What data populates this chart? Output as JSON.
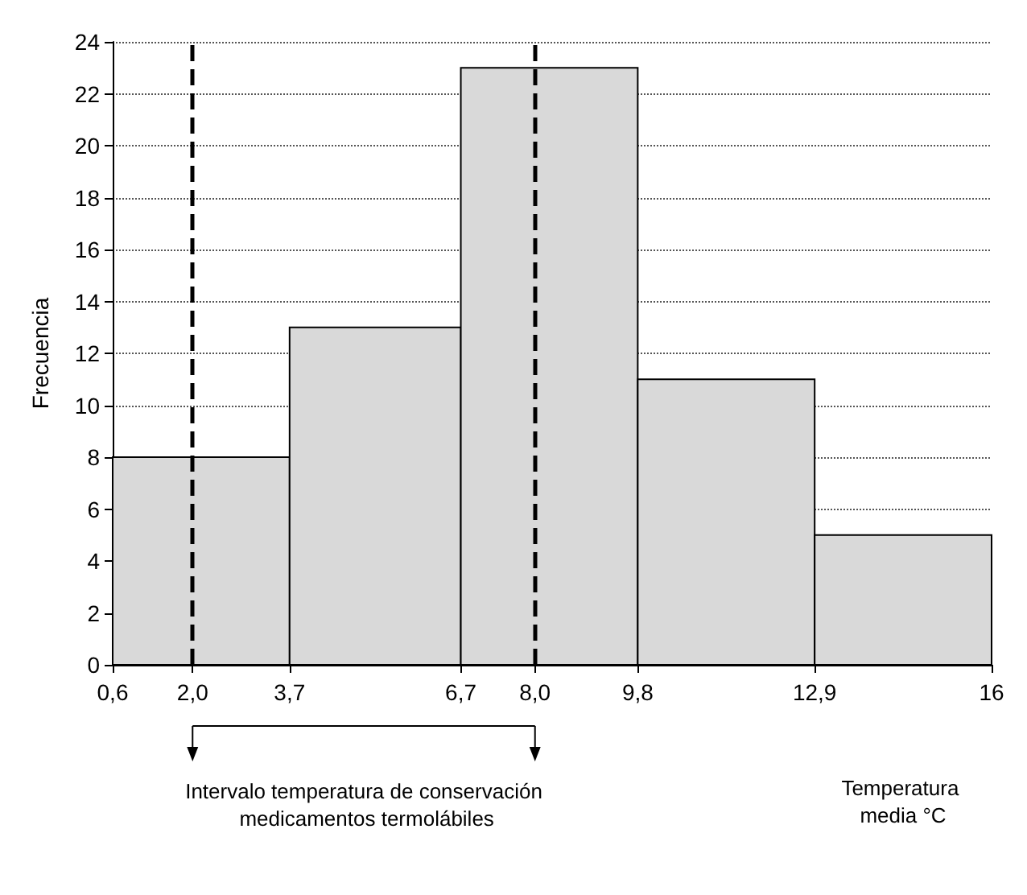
{
  "chart_data": {
    "type": "histogram",
    "xlabel": "Temperatura media °C",
    "ylabel": "Frecuencia",
    "bins": [
      0.6,
      3.7,
      6.7,
      9.8,
      12.9,
      16
    ],
    "values": [
      8,
      13,
      23,
      11,
      5
    ],
    "color": "#d9d9d9",
    "xlim": [
      0.6,
      16
    ],
    "xticks": [
      {
        "value": 0.6,
        "label": "0,6"
      },
      {
        "value": 2.0,
        "label": "2,0"
      },
      {
        "value": 3.7,
        "label": "3,7"
      },
      {
        "value": 6.7,
        "label": "6,7"
      },
      {
        "value": 8.0,
        "label": "8,0"
      },
      {
        "value": 9.8,
        "label": "9,8"
      },
      {
        "value": 12.9,
        "label": "12,9"
      },
      16
    ],
    "ylim": [
      0,
      24
    ],
    "yticks": [
      0,
      2,
      4,
      6,
      8,
      10,
      12,
      14,
      16,
      18,
      20,
      22,
      24
    ],
    "grid": "y",
    "ref_lines": [
      {
        "axis": "x",
        "value": 2.0,
        "label": null,
        "color": "#000000",
        "line_style": "dashed"
      },
      {
        "axis": "x",
        "value": 8.0,
        "label": null,
        "color": "#000000",
        "line_style": "dashed"
      }
    ],
    "annotations": [
      "Intervalo temperatura de conservación medicamentos termolábiles"
    ]
  }
}
